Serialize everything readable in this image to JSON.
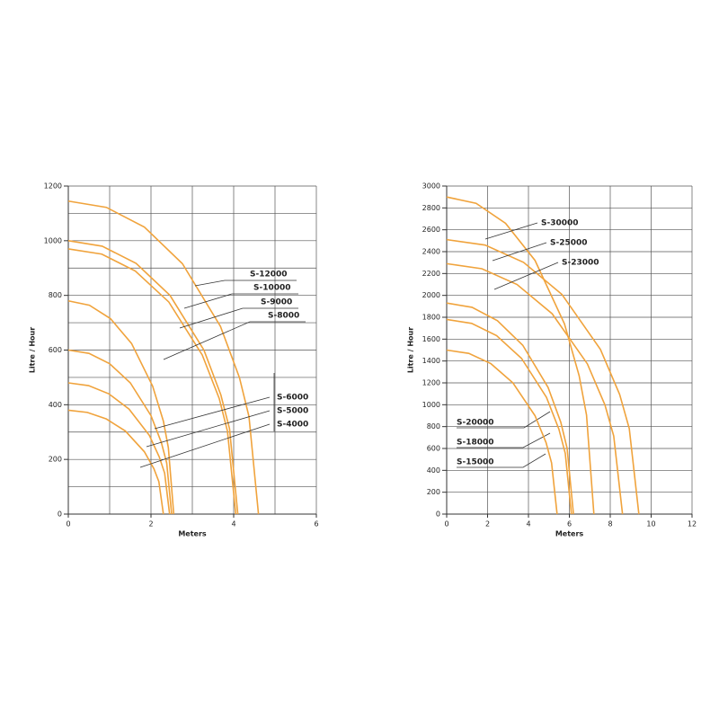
{
  "chart_data": [
    {
      "type": "line",
      "xlabel": "Meters",
      "ylabel": "Litre  /  Hour",
      "xlim": [
        0,
        6
      ],
      "xticks": [
        0,
        2,
        4,
        6
      ],
      "ylim": [
        0,
        1200
      ],
      "yticks": [
        0,
        200,
        400,
        600,
        800,
        1000,
        1200
      ],
      "x_gridlines": [
        1,
        2,
        3,
        4,
        5,
        6
      ],
      "y_gridlines": [
        100,
        200,
        300,
        400,
        500,
        600,
        700,
        800,
        900,
        1000,
        1100,
        1200
      ],
      "series": [
        {
          "name": "S-12000",
          "color": "#f0a33c",
          "x": [
            0,
            0.92,
            1.84,
            2.76,
            3.68,
            4.14,
            4.37,
            4.6
          ],
          "values": [
            1145,
            1122,
            1050,
            916,
            687,
            499,
            357,
            0
          ]
        },
        {
          "name": "S-10000",
          "color": "#f0a33c",
          "x": [
            0,
            0.82,
            1.64,
            2.46,
            3.28,
            3.69,
            3.9,
            4.1
          ],
          "values": [
            1000,
            980,
            917,
            800,
            600,
            436,
            312,
            0
          ]
        },
        {
          "name": "S-9000",
          "color": "#f0a33c",
          "x": [
            0,
            0.81,
            1.62,
            2.43,
            3.24,
            3.65,
            3.85,
            4.05
          ],
          "values": [
            970,
            951,
            889,
            776,
            582,
            423,
            303,
            0
          ]
        },
        {
          "name": "S-8000",
          "color": "#f0a33c",
          "x": [
            0,
            0.51,
            1.02,
            1.53,
            2.04,
            2.3,
            2.42,
            2.55
          ],
          "values": [
            780,
            764,
            715,
            624,
            468,
            340,
            243,
            0
          ]
        },
        {
          "name": "S-6000",
          "color": "#f0a33c",
          "x": [
            0,
            0.5,
            1,
            1.5,
            2,
            2.25,
            2.38,
            2.5
          ],
          "values": [
            600,
            588,
            550,
            480,
            360,
            262,
            187,
            0
          ]
        },
        {
          "name": "S-5000",
          "color": "#f0a33c",
          "x": [
            0,
            0.49,
            0.98,
            1.47,
            1.96,
            2.2,
            2.33,
            2.45
          ],
          "values": [
            480,
            470,
            440,
            384,
            288,
            209,
            150,
            0
          ]
        },
        {
          "name": "S-4000",
          "color": "#f0a33c",
          "x": [
            0,
            0.46,
            0.92,
            1.38,
            1.84,
            2.07,
            2.19,
            2.3
          ],
          "values": [
            380,
            372,
            348,
            304,
            228,
            166,
            119,
            0
          ]
        }
      ]
    },
    {
      "type": "line",
      "xlabel": "Meters",
      "ylabel": "Litre  /  Hour",
      "xlim": [
        0,
        12
      ],
      "xticks": [
        0,
        2,
        4,
        6,
        8,
        10,
        12
      ],
      "ylim": [
        0,
        3000
      ],
      "yticks": [
        0,
        200,
        400,
        600,
        800,
        1000,
        1200,
        1400,
        1600,
        1800,
        2000,
        2200,
        2400,
        2600,
        2800,
        3000
      ],
      "x_gridlines": [
        2,
        4,
        6,
        8,
        10,
        12
      ],
      "y_gridlines": [
        200,
        400,
        600,
        800,
        1000,
        1200,
        1400,
        1600,
        1800,
        2000,
        2200,
        2400,
        2600,
        2800,
        3000
      ],
      "series": [
        {
          "name": "S-30000",
          "color": "#f0a33c",
          "x": [
            0,
            1.44,
            2.88,
            4.32,
            5.76,
            6.48,
            6.84,
            7.2
          ],
          "values": [
            2900,
            2842,
            2659,
            2320,
            1740,
            1264,
            905,
            0
          ]
        },
        {
          "name": "S-25000",
          "color": "#f0a33c",
          "x": [
            0,
            1.88,
            3.76,
            5.64,
            7.52,
            8.46,
            8.93,
            9.4
          ],
          "values": [
            2510,
            2460,
            2302,
            2008,
            1506,
            1094,
            783,
            0
          ]
        },
        {
          "name": "S-23000",
          "color": "#f0a33c",
          "x": [
            0,
            1.72,
            3.44,
            5.16,
            6.88,
            7.74,
            8.17,
            8.6
          ],
          "values": [
            2290,
            2244,
            2100,
            1832,
            1374,
            998,
            714,
            0
          ]
        },
        {
          "name": "S-20000",
          "color": "#f0a33c",
          "x": [
            0,
            1.24,
            2.48,
            3.72,
            4.96,
            5.58,
            5.89,
            6.2
          ],
          "values": [
            1930,
            1891,
            1769,
            1544,
            1158,
            841,
            602,
            0
          ]
        },
        {
          "name": "S-18000",
          "color": "#f0a33c",
          "x": [
            0,
            1.22,
            2.44,
            3.66,
            4.88,
            5.49,
            5.8,
            6.1
          ],
          "values": [
            1780,
            1744,
            1632,
            1424,
            1068,
            776,
            555,
            0
          ]
        },
        {
          "name": "S-15000",
          "color": "#f0a33c",
          "x": [
            0,
            1.08,
            2.16,
            3.24,
            4.32,
            4.86,
            5.13,
            5.4
          ],
          "values": [
            1500,
            1470,
            1376,
            1200,
            900,
            654,
            468,
            0
          ]
        }
      ]
    }
  ]
}
